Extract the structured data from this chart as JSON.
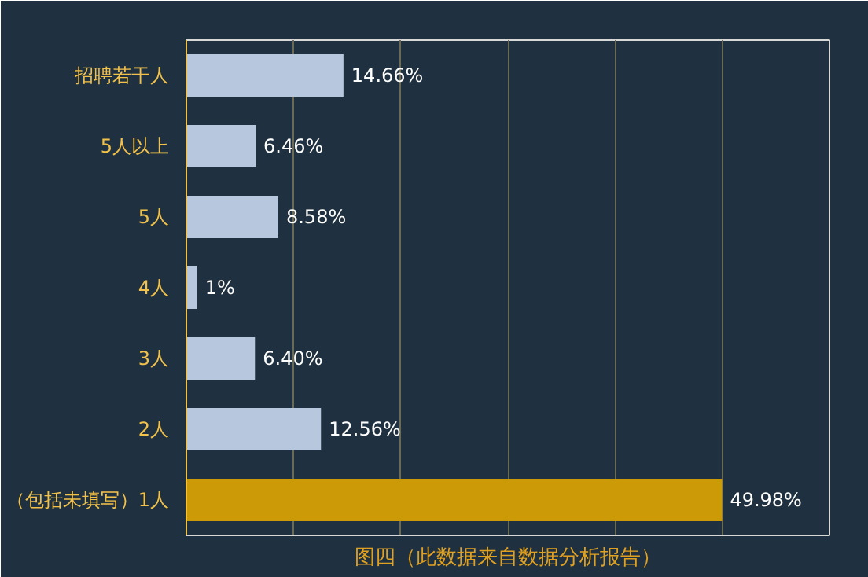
{
  "chart_data": {
    "type": "bar",
    "orientation": "horizontal",
    "title": "图四（此数据来自数据分析报告）",
    "categories": [
      "招聘若干人",
      "5人以上",
      "5人",
      "4人",
      "3人",
      "2人",
      "（包括未填写）1人"
    ],
    "values": [
      14.66,
      6.46,
      8.58,
      1,
      6.4,
      12.56,
      49.98
    ],
    "value_labels": [
      "14.66%",
      "6.46%",
      "8.58%",
      "1%",
      "6.40%",
      "12.56%",
      "49.98%"
    ],
    "colors": [
      "#b7c8de",
      "#b7c8de",
      "#b7c8de",
      "#b7c8de",
      "#b7c8de",
      "#b7c8de",
      "#cc9a06"
    ],
    "xlim": [
      0,
      60
    ],
    "xticks": [
      {
        "value": 0,
        "label": null
      },
      {
        "value": 10,
        "label": null
      },
      {
        "value": 20,
        "label": null
      },
      {
        "value": 30,
        "label": null
      },
      {
        "value": 40,
        "label": null
      },
      {
        "value": 50,
        "label": null
      },
      {
        "value": 60,
        "label": null
      }
    ],
    "grid": "x",
    "tick_labels": "y"
  }
}
